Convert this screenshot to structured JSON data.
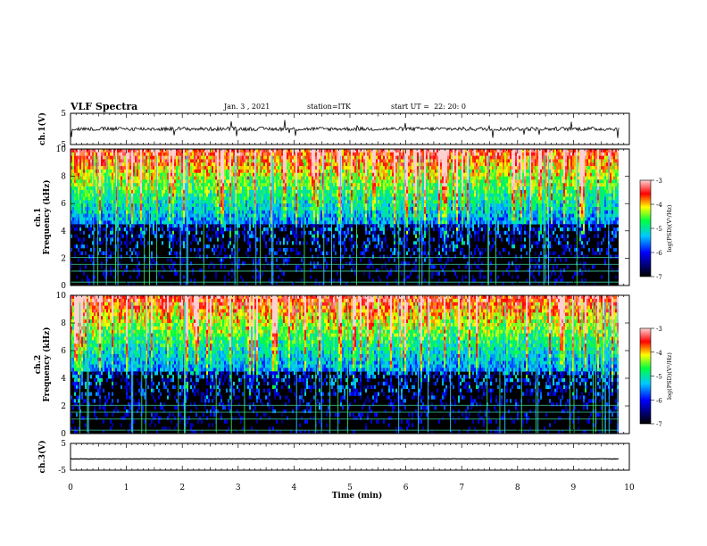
{
  "header": {
    "title": "VLF Spectra",
    "date": "Jan. 3 , 2021",
    "station": "station=ITK",
    "start": "start UT =  22: 20: 0"
  },
  "chart_data": [
    {
      "type": "line",
      "panel": "ch1-waveform",
      "ylabel": "ch.1(V)",
      "xlim": [
        0,
        10
      ],
      "ylim": [
        -5,
        5
      ],
      "yticks": [
        "5",
        "-5"
      ],
      "baseline": 0.0,
      "note_values": "noisy trace around 0 V with sparse spikes up to about +/-4 V"
    },
    {
      "type": "heatmap",
      "panel": "ch1-spectrogram",
      "ylabel": "ch.1\nFrequency (kHz)",
      "xlim": [
        0,
        9.8
      ],
      "ylim": [
        0,
        10
      ],
      "yticks": [
        "0",
        "2",
        "4",
        "6",
        "8",
        "10"
      ],
      "colorbar": {
        "label": "log(PSD)(V²/Hz)",
        "range": [
          -7,
          -3
        ],
        "ticks": [
          "-3",
          "-4",
          "-5",
          "-6",
          "-7"
        ]
      },
      "hum_lines_khz": [
        0.25,
        1.05,
        1.55,
        2.05
      ]
    },
    {
      "type": "heatmap",
      "panel": "ch2-spectrogram",
      "ylabel": "ch.2\nFrequency (kHz)",
      "xlim": [
        0,
        9.8
      ],
      "ylim": [
        0,
        10
      ],
      "yticks": [
        "0",
        "2",
        "4",
        "6",
        "8",
        "10"
      ],
      "colorbar": {
        "label": "log(PSD)(V²/Hz)",
        "range": [
          -7,
          -3
        ],
        "ticks": [
          "-3",
          "-4",
          "-5",
          "-6",
          "-7"
        ]
      },
      "hum_lines_khz": [
        0.25,
        1.05,
        1.55,
        2.05
      ]
    },
    {
      "type": "line",
      "panel": "ch3-waveform",
      "ylabel": "ch.3(V)",
      "xlim": [
        0,
        10
      ],
      "ylim": [
        -5,
        5
      ],
      "yticks": [
        "5",
        "-5"
      ],
      "baseline": -0.8
    }
  ],
  "xaxis": {
    "label": "Time (min)",
    "ticks": [
      "0",
      "1",
      "2",
      "3",
      "4",
      "5",
      "6",
      "7",
      "8",
      "9",
      "10"
    ],
    "range": [
      0,
      10
    ]
  },
  "colors": {
    "axis": "#000000",
    "background": "#000000"
  }
}
